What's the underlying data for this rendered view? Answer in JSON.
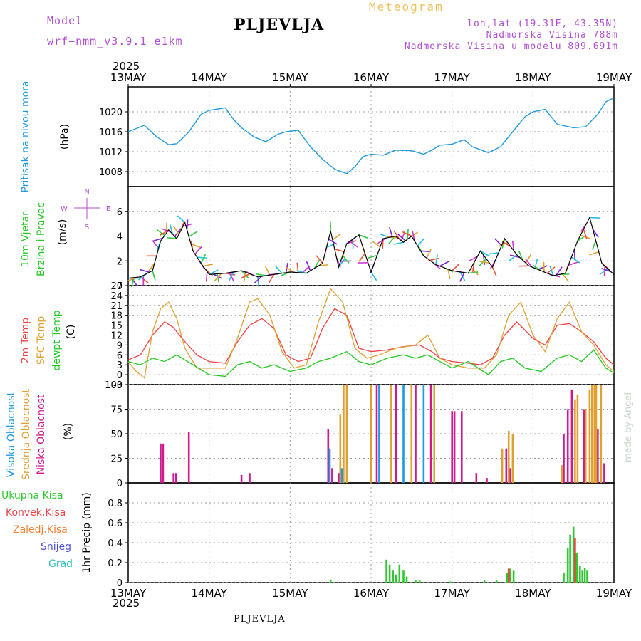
{
  "header": {
    "model_label": "Model",
    "model_name": "wrf−nmm_v3.9.1 e1km",
    "location": "PLJEVLJA",
    "product": "Meteogram",
    "coords": "lon,lat (19.31E, 43.35N)",
    "elevation": "Nadmorska Visina 788m",
    "model_elevation": "Nadmorska Visina u modelu 809.691m",
    "year_top": "2025",
    "year_bottom": "2025",
    "footer_location": "PLJEVLJA",
    "credit": "made by Angel"
  },
  "colors": {
    "pressure": "#1e9be0",
    "temp2m": "#f04040",
    "sfc": "#e0a030",
    "dewpt": "#20c820",
    "high": "#1e9be0",
    "mid": "#e0a030",
    "low": "#d01890",
    "total": "#30c830",
    "convective": "#f04040",
    "frozen": "#f08030",
    "snow": "#5050e0",
    "graupel": "#30c0c0",
    "wind": "#000000"
  },
  "chart_data": [
    {
      "type": "line",
      "panel": "pressure",
      "x_days": [
        13,
        14,
        15,
        16,
        17,
        18,
        19
      ],
      "x_labels": [
        "13MAY",
        "14MAY",
        "15MAY",
        "16MAY",
        "17MAY",
        "18MAY",
        "19MAY"
      ],
      "ylabels": [
        "Pritisak na nivou mora",
        "(hPa)"
      ],
      "ylim": [
        1005,
        1025
      ],
      "yticks": [
        1008,
        1012,
        1016,
        1020
      ],
      "series": [
        {
          "key": "pressure",
          "x": [
            13.0,
            13.2,
            13.35,
            13.5,
            13.6,
            13.75,
            13.9,
            14.0,
            14.2,
            14.3,
            14.4,
            14.55,
            14.7,
            14.85,
            14.95,
            15.1,
            15.25,
            15.4,
            15.55,
            15.7,
            15.8,
            15.9,
            16.0,
            16.15,
            16.3,
            16.5,
            16.65,
            16.75,
            16.85,
            17.0,
            17.15,
            17.25,
            17.45,
            17.6,
            17.75,
            17.9,
            18.0,
            18.15,
            18.3,
            18.5,
            18.65,
            18.8,
            18.9,
            19.0
          ],
          "values": [
            1016,
            1017.3,
            1015,
            1013.4,
            1013.6,
            1016,
            1019.5,
            1020.3,
            1020.8,
            1018.5,
            1016.8,
            1015,
            1014,
            1015.5,
            1016,
            1016.3,
            1013,
            1010.5,
            1008.5,
            1007.6,
            1009,
            1011,
            1011.5,
            1011.3,
            1012.3,
            1012.2,
            1011.5,
            1012.3,
            1013.3,
            1013.5,
            1014.4,
            1013,
            1011.8,
            1013,
            1016,
            1019,
            1020,
            1020.5,
            1017.5,
            1016.8,
            1017,
            1019.5,
            1022,
            1022.8
          ]
        }
      ]
    },
    {
      "type": "line",
      "panel": "wind",
      "ylabels": [
        "10m Vjetar",
        "Brzina i Pravac",
        "(m/s)"
      ],
      "compass": [
        "N",
        "E",
        "S",
        "W"
      ],
      "ylim": [
        0,
        8
      ],
      "yticks": [
        0,
        2,
        4,
        6
      ],
      "series": [
        {
          "key": "wind",
          "x": [
            13.0,
            13.15,
            13.3,
            13.4,
            13.5,
            13.6,
            13.7,
            13.8,
            13.9,
            14.0,
            14.2,
            14.4,
            14.6,
            14.8,
            15.0,
            15.2,
            15.4,
            15.5,
            15.6,
            15.7,
            15.85,
            16.0,
            16.15,
            16.3,
            16.4,
            16.5,
            16.65,
            16.8,
            17.0,
            17.2,
            17.35,
            17.5,
            17.65,
            17.8,
            17.95,
            18.1,
            18.25,
            18.4,
            18.55,
            18.7,
            18.85,
            19.0
          ],
          "values": [
            0.6,
            0.7,
            1.2,
            3.6,
            4.5,
            3.8,
            5.1,
            2.8,
            1.8,
            0.9,
            1.0,
            1.2,
            0.7,
            0.9,
            1.1,
            1.0,
            1.8,
            4.4,
            1.5,
            3.4,
            4.1,
            1.1,
            3.8,
            4.0,
            3.5,
            4.0,
            2.4,
            1.7,
            1.2,
            1.0,
            2.8,
            1.5,
            3.8,
            2.5,
            1.6,
            1.2,
            0.8,
            1.0,
            3.6,
            5.5,
            1.8,
            0.9
          ]
        }
      ]
    },
    {
      "type": "line",
      "panel": "temperature",
      "ylabels": [
        "2m Temp",
        "SFC Temp",
        "dewpt Temp",
        "(C)"
      ],
      "ylim": [
        -3,
        27
      ],
      "yticks": [
        -3,
        0,
        3,
        6,
        9,
        12,
        15,
        18,
        21,
        24,
        27
      ],
      "series": [
        {
          "key": "temp2m",
          "name": "2m Temp",
          "x": [
            13.0,
            13.15,
            13.3,
            13.45,
            13.55,
            13.7,
            13.85,
            14.0,
            14.2,
            14.35,
            14.5,
            14.65,
            14.8,
            14.95,
            15.1,
            15.25,
            15.4,
            15.55,
            15.7,
            15.85,
            16.0,
            16.2,
            16.4,
            16.6,
            16.75,
            16.85,
            17.0,
            17.2,
            17.35,
            17.5,
            17.65,
            17.8,
            18.0,
            18.15,
            18.3,
            18.45,
            18.6,
            18.75,
            18.9,
            19.0
          ],
          "values": [
            4.5,
            6,
            12,
            16,
            14.5,
            10,
            6,
            4,
            3.5,
            10,
            15,
            17,
            14,
            6,
            4,
            5,
            14,
            20,
            18,
            8,
            7,
            7.5,
            8.5,
            9,
            7,
            5,
            4,
            3.5,
            3,
            5,
            12,
            16,
            11,
            9,
            15,
            15.5,
            13,
            10,
            5,
            3
          ]
        },
        {
          "key": "sfc",
          "name": "SFC Temp",
          "x": [
            13.0,
            13.1,
            13.2,
            13.3,
            13.4,
            13.5,
            13.6,
            13.7,
            13.85,
            14.0,
            14.2,
            14.35,
            14.5,
            14.6,
            14.75,
            14.9,
            15.05,
            15.2,
            15.35,
            15.5,
            15.65,
            15.8,
            15.95,
            16.1,
            16.3,
            16.55,
            16.7,
            16.85,
            17.0,
            17.2,
            17.4,
            17.55,
            17.7,
            17.85,
            18.0,
            18.15,
            18.3,
            18.45,
            18.6,
            18.75,
            18.9,
            19.0
          ],
          "values": [
            4,
            1,
            -1,
            13,
            20,
            22,
            17,
            8,
            2,
            2,
            2,
            11,
            22,
            23,
            18,
            7,
            2,
            3,
            16,
            26,
            22,
            8,
            5,
            6,
            8,
            9,
            12,
            5,
            3,
            2,
            2,
            6,
            18,
            22,
            12,
            7,
            17,
            22,
            13,
            9,
            3,
            1
          ]
        },
        {
          "key": "dewpt",
          "name": "dewpt Temp",
          "x": [
            13.0,
            13.15,
            13.3,
            13.45,
            13.6,
            13.8,
            14.0,
            14.2,
            14.35,
            14.5,
            14.65,
            14.8,
            15.0,
            15.2,
            15.35,
            15.5,
            15.7,
            15.85,
            16.0,
            16.2,
            16.4,
            16.55,
            16.7,
            16.85,
            17.0,
            17.2,
            17.45,
            17.6,
            17.75,
            17.9,
            18.1,
            18.3,
            18.45,
            18.6,
            18.75,
            18.9,
            19.0
          ],
          "values": [
            4,
            3,
            5,
            4,
            6,
            3,
            0,
            -0.5,
            3,
            4,
            2,
            3,
            1,
            2,
            4,
            5,
            7,
            4,
            3,
            5,
            6,
            5,
            6,
            4,
            2,
            4,
            0,
            4,
            5,
            2,
            1,
            5,
            6,
            4,
            7.5,
            2,
            0.5
          ]
        }
      ]
    },
    {
      "type": "bar",
      "panel": "cloud",
      "ylabels": [
        "Visoka Oblacnost",
        "Srednja Oblacnost",
        "Niska Oblacnost",
        "(%)"
      ],
      "ylim": [
        0,
        100
      ],
      "yticks": [
        0,
        25,
        50,
        75,
        100
      ],
      "series": [
        {
          "key": "low",
          "name": "Niska Oblacnost",
          "x": [
            13.4,
            13.43,
            13.56,
            13.59,
            13.75,
            14.4,
            14.5,
            15.47,
            15.52,
            15.6,
            16.07,
            16.31,
            16.55,
            16.74,
            17.0,
            17.03,
            17.12,
            17.3,
            17.43,
            17.67,
            17.72,
            18.38,
            18.43,
            18.48,
            18.63,
            18.8,
            18.88
          ],
          "values": [
            40,
            40,
            10,
            10,
            52,
            8,
            10,
            55,
            15,
            10,
            100,
            100,
            100,
            100,
            73,
            73,
            73,
            10,
            5,
            35,
            15,
            50,
            75,
            95,
            75,
            55,
            20
          ]
        },
        {
          "key": "mid",
          "name": "Srednja Oblacnost",
          "x": [
            15.62,
            15.66,
            15.7,
            16.0,
            16.25,
            16.5,
            16.78,
            17.62,
            17.7,
            17.75,
            18.36,
            18.52,
            18.55,
            18.65,
            18.7,
            18.73,
            18.76,
            18.78,
            18.84
          ],
          "values": [
            70,
            100,
            100,
            100,
            100,
            100,
            100,
            35,
            53,
            50,
            18,
            85,
            90,
            75,
            95,
            100,
            100,
            100,
            100
          ]
        },
        {
          "key": "high",
          "name": "Visoka Oblacnost",
          "x": [
            15.49,
            15.64,
            16.1,
            16.4,
            16.65
          ],
          "values": [
            35,
            15,
            100,
            100,
            100
          ]
        }
      ]
    },
    {
      "type": "bar",
      "panel": "precip",
      "ylabels": [
        "1hr Precip (mm)"
      ],
      "legend": [
        "Ukupna Kisa",
        "Konvek.Kisa",
        "Zaledj.Kisa",
        "Snijeg",
        "Grad"
      ],
      "ylim": [
        0,
        1
      ],
      "yticks": [
        0,
        0.2,
        0.4,
        0.6,
        0.8
      ],
      "series": [
        {
          "key": "total",
          "name": "Ukupna Kisa",
          "x": [
            15.5,
            16.19,
            16.23,
            16.27,
            16.31,
            16.35,
            16.4,
            16.44,
            16.55,
            16.6,
            16.98,
            17.4,
            17.55,
            17.68,
            17.72,
            17.76,
            18.38,
            18.43,
            18.46,
            18.5,
            18.54,
            18.58,
            18.61,
            18.64,
            18.67
          ],
          "values": [
            0.03,
            0.23,
            0.18,
            0.12,
            0.08,
            0.18,
            0.12,
            0.06,
            0.02,
            0.02,
            0.01,
            0.02,
            0.02,
            0.1,
            0.14,
            0.12,
            0.1,
            0.35,
            0.48,
            0.56,
            0.3,
            0.17,
            0.12,
            0.15,
            0.12
          ]
        },
        {
          "key": "convective",
          "name": "Konvek.Kisa",
          "x": [
            17.7,
            18.52
          ],
          "values": [
            0.14,
            0.45
          ]
        }
      ]
    }
  ]
}
